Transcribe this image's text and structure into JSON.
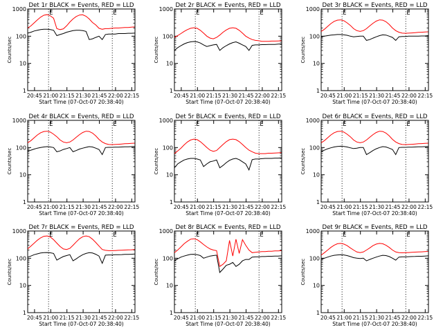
{
  "colors": {
    "events": "#000000",
    "lld": "#ff0000",
    "axis": "#000000",
    "background": "#ffffff"
  },
  "shared": {
    "xlabel": "Start Time (07-Oct-07 20:38:40)",
    "ylabel": "Counts/sec",
    "x_ticks": [
      "20:45",
      "21:00",
      "21:15",
      "21:30",
      "21:45",
      "22:00",
      "22:15"
    ],
    "y_ticks": [
      "1",
      "10",
      "100",
      "1000"
    ],
    "marker_labels": [
      "E",
      "E"
    ]
  },
  "chart_data": [
    {
      "type": "line",
      "title": "Det 1r BLACK = Events, RED = LLD",
      "x_start": "20:38:40",
      "x_end": "22:18",
      "ylim": [
        1,
        1000
      ],
      "y_scale": "log",
      "vlines": [
        "20:58",
        "21:57"
      ],
      "x_minutes": [
        0,
        3,
        6,
        9,
        12,
        15,
        18,
        21,
        24,
        27,
        30,
        33,
        36,
        39,
        42,
        45,
        48,
        51,
        54,
        57,
        60,
        63,
        66,
        69,
        72,
        75,
        78,
        81,
        84,
        87,
        90,
        93,
        96,
        99
      ],
      "series": [
        {
          "name": "LLD",
          "color": "#ff0000",
          "values": [
            200,
            240,
            310,
            400,
            500,
            590,
            620,
            560,
            460,
            190,
            175,
            185,
            240,
            330,
            430,
            530,
            600,
            610,
            540,
            430,
            320,
            260,
            195,
            180,
            190,
            190,
            195,
            200,
            200,
            205,
            210,
            210,
            215,
            220
          ]
        },
        {
          "name": "Events",
          "color": "#000000",
          "values": [
            130,
            140,
            155,
            165,
            175,
            180,
            180,
            175,
            165,
            105,
            115,
            125,
            140,
            150,
            160,
            165,
            165,
            160,
            150,
            75,
            80,
            90,
            100,
            75,
            115,
            120,
            120,
            120,
            125,
            125,
            125,
            128,
            128,
            130
          ]
        }
      ]
    },
    {
      "type": "line",
      "title": "Det 2r BLACK = Events, RED = LLD",
      "x_start": "20:38:40",
      "x_end": "22:18",
      "ylim": [
        1,
        1000
      ],
      "y_scale": "log",
      "vlines": [
        "20:58",
        "21:57"
      ],
      "x_minutes": [
        0,
        3,
        6,
        9,
        12,
        15,
        18,
        21,
        24,
        27,
        30,
        33,
        36,
        39,
        42,
        45,
        48,
        51,
        54,
        57,
        60,
        63,
        66,
        69,
        72,
        75,
        78,
        81,
        84,
        87,
        90,
        93,
        96,
        99
      ],
      "series": [
        {
          "name": "LLD",
          "color": "#ff0000",
          "values": [
            90,
            105,
            125,
            150,
            175,
            195,
            205,
            195,
            165,
            130,
            100,
            85,
            80,
            90,
            110,
            140,
            170,
            195,
            205,
            195,
            165,
            130,
            100,
            85,
            75,
            70,
            68,
            65,
            65,
            65,
            66,
            66,
            67,
            68
          ]
        },
        {
          "name": "Events",
          "color": "#000000",
          "values": [
            30,
            38,
            45,
            52,
            58,
            62,
            64,
            62,
            56,
            48,
            42,
            45,
            48,
            50,
            30,
            38,
            45,
            52,
            58,
            62,
            55,
            48,
            42,
            30,
            46,
            48,
            48,
            49,
            49,
            50,
            50,
            50,
            51,
            52
          ]
        }
      ]
    },
    {
      "type": "line",
      "title": "Det 3r BLACK = Events, RED = LLD",
      "x_start": "20:38:40",
      "x_end": "22:18",
      "ylim": [
        1,
        1000
      ],
      "y_scale": "log",
      "vlines": [
        "20:58",
        "21:57"
      ],
      "x_minutes": [
        0,
        3,
        6,
        9,
        12,
        15,
        18,
        21,
        24,
        27,
        30,
        33,
        36,
        39,
        42,
        45,
        48,
        51,
        54,
        57,
        60,
        63,
        66,
        69,
        72,
        75,
        78,
        81,
        84,
        87,
        90,
        93,
        96,
        99
      ],
      "series": [
        {
          "name": "LLD",
          "color": "#ff0000",
          "values": [
            150,
            180,
            230,
            290,
            350,
            390,
            400,
            370,
            310,
            250,
            190,
            160,
            150,
            160,
            190,
            240,
            300,
            360,
            400,
            390,
            340,
            270,
            200,
            160,
            140,
            130,
            128,
            130,
            132,
            135,
            138,
            140,
            142,
            145
          ]
        },
        {
          "name": "Events",
          "color": "#000000",
          "values": [
            95,
            100,
            105,
            110,
            112,
            115,
            115,
            112,
            108,
            100,
            95,
            98,
            100,
            100,
            70,
            75,
            85,
            95,
            105,
            112,
            110,
            100,
            90,
            70,
            95,
            98,
            98,
            100,
            100,
            100,
            100,
            102,
            102,
            105
          ]
        }
      ]
    },
    {
      "type": "line",
      "title": "Det 4r BLACK = Events, RED = LLD",
      "x_start": "20:38:40",
      "x_end": "22:18",
      "ylim": [
        1,
        1000
      ],
      "y_scale": "log",
      "vlines": [
        "20:58",
        "21:57"
      ],
      "x_minutes": [
        0,
        3,
        6,
        9,
        12,
        15,
        18,
        21,
        24,
        27,
        30,
        33,
        36,
        39,
        42,
        45,
        48,
        51,
        54,
        57,
        60,
        63,
        66,
        69,
        72,
        75,
        78,
        81,
        84,
        87,
        90,
        93,
        96,
        99
      ],
      "series": [
        {
          "name": "LLD",
          "color": "#ff0000",
          "values": [
            150,
            180,
            230,
            290,
            350,
            390,
            400,
            370,
            310,
            250,
            190,
            160,
            150,
            160,
            190,
            240,
            300,
            360,
            400,
            390,
            340,
            270,
            200,
            160,
            140,
            130,
            128,
            130,
            132,
            135,
            138,
            140,
            142,
            145
          ]
        },
        {
          "name": "Events",
          "color": "#000000",
          "values": [
            75,
            80,
            88,
            95,
            100,
            105,
            108,
            105,
            100,
            70,
            75,
            85,
            92,
            100,
            70,
            78,
            88,
            95,
            102,
            108,
            105,
            95,
            85,
            55,
            100,
            102,
            102,
            104,
            104,
            105,
            106,
            106,
            108,
            110
          ]
        }
      ]
    },
    {
      "type": "line",
      "title": "Det 5r BLACK = Events, RED = LLD",
      "x_start": "20:38:40",
      "x_end": "22:18",
      "ylim": [
        1,
        1000
      ],
      "y_scale": "log",
      "vlines": [
        "20:58",
        "21:57"
      ],
      "x_minutes": [
        0,
        3,
        6,
        9,
        12,
        15,
        18,
        21,
        24,
        27,
        30,
        33,
        36,
        39,
        42,
        45,
        48,
        51,
        54,
        57,
        60,
        63,
        66,
        69,
        72,
        75,
        78,
        81,
        84,
        87,
        90,
        93,
        96,
        99
      ],
      "series": [
        {
          "name": "LLD",
          "color": "#ff0000",
          "values": [
            60,
            75,
            95,
            125,
            160,
            190,
            205,
            195,
            165,
            130,
            100,
            80,
            72,
            78,
            100,
            130,
            165,
            195,
            205,
            195,
            165,
            130,
            100,
            80,
            70,
            62,
            60,
            60,
            60,
            62,
            62,
            63,
            64,
            65
          ]
        },
        {
          "name": "Events",
          "color": "#000000",
          "values": [
            18,
            25,
            30,
            35,
            38,
            40,
            40,
            38,
            35,
            20,
            25,
            30,
            32,
            35,
            18,
            22,
            28,
            34,
            38,
            40,
            36,
            30,
            25,
            15,
            36,
            38,
            38,
            39,
            40,
            40,
            40,
            41,
            41,
            42
          ]
        }
      ]
    },
    {
      "type": "line",
      "title": "Det 6r BLACK = Events, RED = LLD",
      "x_start": "20:38:40",
      "x_end": "22:18",
      "ylim": [
        1,
        1000
      ],
      "y_scale": "log",
      "vlines": [
        "20:58",
        "21:57"
      ],
      "x_minutes": [
        0,
        3,
        6,
        9,
        12,
        15,
        18,
        21,
        24,
        27,
        30,
        33,
        36,
        39,
        42,
        45,
        48,
        51,
        54,
        57,
        60,
        63,
        66,
        69,
        72,
        75,
        78,
        81,
        84,
        87,
        90,
        93,
        96,
        99
      ],
      "series": [
        {
          "name": "LLD",
          "color": "#ff0000",
          "values": [
            150,
            180,
            230,
            290,
            350,
            390,
            400,
            370,
            310,
            250,
            190,
            160,
            150,
            160,
            190,
            240,
            300,
            360,
            400,
            390,
            340,
            270,
            200,
            160,
            140,
            130,
            128,
            130,
            132,
            135,
            138,
            140,
            142,
            145
          ]
        },
        {
          "name": "Events",
          "color": "#000000",
          "values": [
            70,
            80,
            90,
            98,
            105,
            110,
            112,
            110,
            105,
            98,
            92,
            95,
            100,
            100,
            55,
            65,
            78,
            90,
            100,
            108,
            105,
            95,
            85,
            55,
            100,
            102,
            102,
            104,
            104,
            105,
            106,
            106,
            108,
            110
          ]
        }
      ]
    },
    {
      "type": "line",
      "title": "Det 7r BLACK = Events, RED = LLD",
      "x_start": "20:38:40",
      "x_end": "22:18",
      "ylim": [
        1,
        1000
      ],
      "y_scale": "log",
      "vlines": [
        "20:58",
        "21:57"
      ],
      "x_minutes": [
        0,
        3,
        6,
        9,
        12,
        15,
        18,
        21,
        24,
        27,
        30,
        33,
        36,
        39,
        42,
        45,
        48,
        51,
        54,
        57,
        60,
        63,
        66,
        69,
        72,
        75,
        78,
        81,
        84,
        87,
        90,
        93,
        96,
        99
      ],
      "series": [
        {
          "name": "LLD",
          "color": "#ff0000",
          "values": [
            220,
            280,
            360,
            460,
            560,
            640,
            660,
            600,
            480,
            360,
            270,
            220,
            210,
            230,
            300,
            400,
            520,
            620,
            660,
            620,
            500,
            380,
            280,
            210,
            195,
            190,
            190,
            192,
            195,
            198,
            200,
            202,
            205,
            210
          ]
        },
        {
          "name": "Events",
          "color": "#000000",
          "values": [
            110,
            120,
            135,
            145,
            155,
            160,
            162,
            158,
            150,
            85,
            100,
            115,
            125,
            135,
            80,
            95,
            115,
            135,
            150,
            160,
            155,
            140,
            120,
            65,
            130,
            132,
            132,
            134,
            135,
            136,
            138,
            138,
            140,
            142
          ]
        }
      ]
    },
    {
      "type": "line",
      "title": "Det 8r BLACK = Events, RED = LLD",
      "x_start": "20:38:40",
      "x_end": "22:18",
      "ylim": [
        1,
        1000
      ],
      "y_scale": "log",
      "vlines": [
        "20:58",
        "21:57"
      ],
      "x_minutes": [
        0,
        3,
        6,
        9,
        12,
        15,
        18,
        21,
        24,
        27,
        30,
        33,
        36,
        39,
        42,
        45,
        48,
        51,
        54,
        57,
        60,
        63,
        66,
        69,
        72,
        75,
        78,
        81,
        84,
        87,
        90,
        93,
        96,
        99
      ],
      "series": [
        {
          "name": "LLD",
          "color": "#ff0000",
          "values": [
            160,
            200,
            260,
            340,
            420,
            500,
            520,
            480,
            400,
            320,
            260,
            220,
            200,
            190,
            50,
            60,
            80,
            450,
            120,
            500,
            150,
            480,
            300,
            200,
            160,
            165,
            170,
            175,
            175,
            180,
            180,
            185,
            185,
            190
          ]
        },
        {
          "name": "Events",
          "color": "#000000",
          "values": [
            80,
            95,
            110,
            120,
            130,
            138,
            140,
            135,
            125,
            100,
            110,
            120,
            125,
            130,
            30,
            40,
            55,
            60,
            70,
            50,
            60,
            80,
            90,
            90,
            110,
            112,
            112,
            115,
            115,
            118,
            118,
            120,
            120,
            122
          ]
        }
      ]
    },
    {
      "type": "line",
      "title": "Det 9r BLACK = Events, RED = LLD",
      "x_start": "20:38:40",
      "x_end": "22:18",
      "ylim": [
        1,
        1000
      ],
      "y_scale": "log",
      "vlines": [
        "20:58",
        "21:57"
      ],
      "x_minutes": [
        0,
        3,
        6,
        9,
        12,
        15,
        18,
        21,
        24,
        27,
        30,
        33,
        36,
        39,
        42,
        45,
        48,
        51,
        54,
        57,
        60,
        63,
        66,
        69,
        72,
        75,
        78,
        81,
        84,
        87,
        90,
        93,
        96,
        99
      ],
      "series": [
        {
          "name": "LLD",
          "color": "#ff0000",
          "values": [
            130,
            160,
            200,
            250,
            300,
            340,
            350,
            330,
            290,
            240,
            200,
            170,
            160,
            170,
            200,
            240,
            290,
            330,
            350,
            340,
            300,
            250,
            200,
            170,
            160,
            158,
            160,
            162,
            165,
            168,
            170,
            172,
            175,
            178
          ]
        },
        {
          "name": "Events",
          "color": "#000000",
          "values": [
            90,
            100,
            110,
            120,
            128,
            132,
            135,
            132,
            125,
            115,
            105,
            100,
            98,
            100,
            80,
            90,
            100,
            110,
            120,
            128,
            125,
            115,
            100,
            85,
            110,
            112,
            112,
            114,
            115,
            116,
            118,
            118,
            120,
            122
          ]
        }
      ]
    }
  ]
}
